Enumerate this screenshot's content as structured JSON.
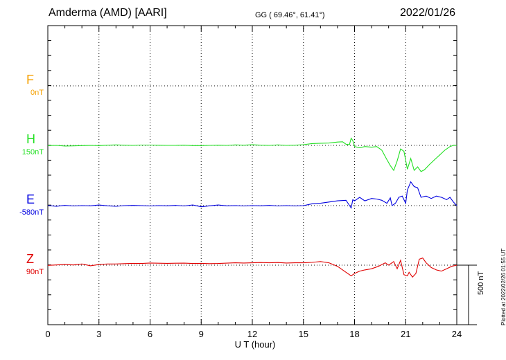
{
  "header": {
    "station": "Amderma (AMD)  [AARI]",
    "coords": "GG ( 69.46°,  61.41°)",
    "date": "2022/01/26"
  },
  "footer": {
    "plotted": "Plotted at 2022/02/26 01:55 UT",
    "scale_label": "500 nT"
  },
  "chart_data": {
    "type": "line",
    "xlabel": "U T (hour)",
    "xlim": [
      0,
      24
    ],
    "xticks": [
      "0",
      "3",
      "6",
      "9",
      "12",
      "15",
      "18",
      "21",
      "24"
    ],
    "scale_bar_nT": 500,
    "grid": true,
    "series": [
      {
        "name": "F",
        "baseline_label": "0nT",
        "color": "#f5a000",
        "baseline_value": 0,
        "x": [],
        "values": []
      },
      {
        "name": "H",
        "baseline_label": "150nT",
        "color": "#22e022",
        "baseline_value": 150,
        "x": [
          0,
          0.5,
          1,
          1.5,
          2,
          2.5,
          3,
          3.5,
          4,
          4.5,
          5,
          5.5,
          6,
          6.5,
          7,
          7.5,
          8,
          8.5,
          9,
          9.5,
          10,
          10.5,
          11,
          11.5,
          12,
          12.5,
          13,
          13.5,
          14,
          14.5,
          15,
          15.5,
          16,
          16.5,
          17,
          17.3,
          17.5,
          17.7,
          17.8,
          17.9,
          18,
          18.3,
          18.6,
          19,
          19.3,
          19.6,
          19.9,
          20.1,
          20.3,
          20.5,
          20.7,
          20.9,
          21.1,
          21.3,
          21.5,
          21.7,
          21.9,
          22.1,
          22.4,
          22.7,
          23,
          23.3,
          23.6,
          23.8,
          24
        ],
        "values": [
          148,
          150,
          145,
          146,
          148,
          150,
          148,
          152,
          154,
          152,
          150,
          153,
          153,
          151,
          150,
          150,
          152,
          148,
          148,
          150,
          152,
          150,
          154,
          152,
          155,
          152,
          150,
          154,
          150,
          152,
          156,
          165,
          168,
          170,
          178,
          180,
          160,
          155,
          210,
          190,
          140,
          130,
          140,
          135,
          140,
          110,
          30,
          -20,
          -60,
          20,
          120,
          100,
          -50,
          40,
          -60,
          -30,
          -70,
          -55,
          -10,
          30,
          70,
          110,
          140,
          150,
          150
        ]
      },
      {
        "name": "E",
        "baseline_label": "-580nT",
        "color": "#0000e0",
        "baseline_value": -580,
        "x": [
          0,
          0.5,
          1,
          1.5,
          2,
          2.5,
          3,
          3.5,
          4,
          4.5,
          5,
          5.5,
          6,
          6.5,
          7,
          7.5,
          8,
          8.5,
          9,
          9.5,
          10,
          10.5,
          11,
          11.5,
          12,
          12.5,
          13,
          13.5,
          14,
          14.5,
          15,
          15.5,
          16,
          16.5,
          17,
          17.5,
          17.8,
          17.9,
          18,
          18.3,
          18.6,
          19,
          19.3,
          19.6,
          19.9,
          20.1,
          20.2,
          20.4,
          20.6,
          20.8,
          21,
          21.1,
          21.3,
          21.5,
          21.7,
          21.9,
          22.2,
          22.5,
          22.8,
          23.1,
          23.4,
          23.6,
          23.8,
          24
        ],
        "values": [
          -580,
          -585,
          -578,
          -583,
          -580,
          -582,
          -575,
          -582,
          -586,
          -580,
          -578,
          -580,
          -583,
          -580,
          -582,
          -578,
          -583,
          -575,
          -590,
          -582,
          -575,
          -582,
          -580,
          -583,
          -580,
          -582,
          -578,
          -583,
          -580,
          -583,
          -580,
          -565,
          -560,
          -550,
          -540,
          -535,
          -600,
          -530,
          -540,
          -510,
          -540,
          -520,
          -525,
          -535,
          -560,
          -515,
          -580,
          -560,
          -510,
          -500,
          -560,
          -450,
          -380,
          -420,
          -430,
          -510,
          -500,
          -520,
          -500,
          -510,
          -530,
          -510,
          -550,
          -580
        ]
      },
      {
        "name": "Z",
        "baseline_label": "90nT",
        "color": "#e00000",
        "baseline_value": 90,
        "x": [
          0,
          0.5,
          1,
          1.5,
          2,
          2.5,
          3,
          3.5,
          4,
          4.5,
          5,
          5.5,
          6,
          6.5,
          7,
          7.5,
          8,
          8.5,
          9,
          9.5,
          10,
          10.5,
          11,
          11.5,
          12,
          12.5,
          13,
          13.5,
          14,
          14.5,
          15,
          15.5,
          16,
          16.5,
          17,
          17.5,
          17.8,
          18,
          18.3,
          18.6,
          19,
          19.4,
          19.8,
          20,
          20.3,
          20.5,
          20.7,
          20.9,
          21.1,
          21.2,
          21.4,
          21.6,
          21.8,
          22,
          22.2,
          22.5,
          22.8,
          23.1,
          23.4,
          23.7,
          24
        ],
        "values": [
          88,
          92,
          95,
          92,
          100,
          85,
          95,
          100,
          100,
          103,
          105,
          104,
          108,
          106,
          105,
          106,
          107,
          104,
          105,
          103,
          104,
          107,
          110,
          108,
          110,
          112,
          110,
          112,
          108,
          110,
          110,
          113,
          120,
          110,
          80,
          30,
          0,
          20,
          40,
          50,
          60,
          80,
          110,
          90,
          120,
          60,
          130,
          10,
          0,
          30,
          -10,
          20,
          140,
          150,
          110,
          70,
          50,
          40,
          60,
          80,
          90
        ]
      }
    ]
  }
}
